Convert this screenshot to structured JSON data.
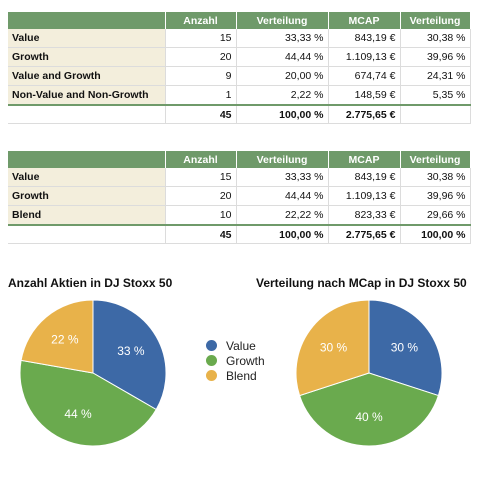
{
  "colors": {
    "value": "#3d69a6",
    "growth": "#6aaa4e",
    "blend": "#e8b24a",
    "header": "#6f9a6a",
    "label_bg": "#f3eedc"
  },
  "table1": {
    "headers": [
      "",
      "Anzahl",
      "Verteilung",
      "MCAP",
      "Verteilung"
    ],
    "rows": [
      [
        "Value",
        "15",
        "33,33 %",
        "843,19 €",
        "30,38 %"
      ],
      [
        "Growth",
        "20",
        "44,44 %",
        "1.109,13 €",
        "39,96 %"
      ],
      [
        "Value and Growth",
        "9",
        "20,00 %",
        "674,74 €",
        "24,31 %"
      ],
      [
        "Non-Value and Non-Growth",
        "1",
        "2,22 %",
        "148,59 €",
        "5,35 %"
      ]
    ],
    "total": [
      "",
      "45",
      "100,00 %",
      "2.775,65 €",
      ""
    ]
  },
  "table2": {
    "headers": [
      "",
      "Anzahl",
      "Verteilung",
      "MCAP",
      "Verteilung"
    ],
    "rows": [
      [
        "Value",
        "15",
        "33,33 %",
        "843,19 €",
        "30,38 %"
      ],
      [
        "Growth",
        "20",
        "44,44 %",
        "1.109,13 €",
        "39,96 %"
      ],
      [
        "Blend",
        "10",
        "22,22 %",
        "823,33 €",
        "29,66 %"
      ]
    ],
    "total": [
      "",
      "45",
      "100,00 %",
      "2.775,65 €",
      "100,00 %"
    ]
  },
  "chart_data": [
    {
      "type": "pie",
      "title": "Anzahl Aktien in DJ Stoxx 50",
      "categories": [
        "Value",
        "Growth",
        "Blend"
      ],
      "values": [
        33,
        44,
        22
      ],
      "labels": [
        "33 %",
        "44 %",
        "22 %"
      ],
      "colors": [
        "#3d69a6",
        "#6aaa4e",
        "#e8b24a"
      ]
    },
    {
      "type": "pie",
      "title": "Verteilung nach MCap in DJ Stoxx 50",
      "categories": [
        "Value",
        "Growth",
        "Blend"
      ],
      "values": [
        30,
        40,
        30
      ],
      "labels": [
        "30 %",
        "40 %",
        "30 %"
      ],
      "colors": [
        "#3d69a6",
        "#6aaa4e",
        "#e8b24a"
      ]
    }
  ],
  "legend": {
    "placement": "center",
    "items": [
      {
        "label": "Value",
        "color": "#3d69a6"
      },
      {
        "label": "Growth",
        "color": "#6aaa4e"
      },
      {
        "label": "Blend",
        "color": "#e8b24a"
      }
    ]
  }
}
